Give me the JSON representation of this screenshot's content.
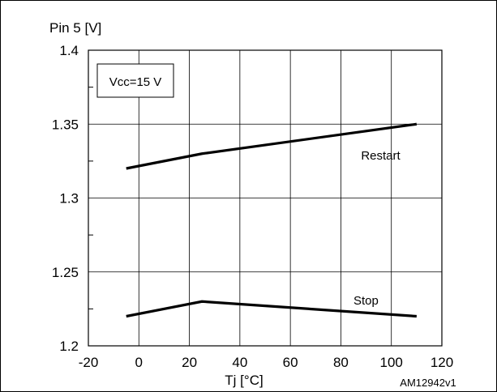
{
  "chart_data": {
    "type": "line",
    "title": "",
    "ylabel": "Pin 5 [V]",
    "xlabel": "Tj [°C]",
    "xlim": [
      -20,
      120
    ],
    "ylim": [
      1.2,
      1.4
    ],
    "x_ticks": [
      -20,
      0,
      20,
      40,
      60,
      80,
      100,
      120
    ],
    "x_tick_labels": [
      "-20",
      "0",
      "20",
      "40",
      "60",
      "80",
      "100",
      "120"
    ],
    "y_ticks": [
      1.2,
      1.25,
      1.3,
      1.35,
      1.4
    ],
    "y_tick_labels": [
      "1.2",
      "1.25",
      "1.3",
      "1.35",
      "1.4"
    ],
    "grid": true,
    "series": [
      {
        "name": "Restart",
        "x": [
          -5,
          25,
          110
        ],
        "y": [
          1.32,
          1.33,
          1.35
        ]
      },
      {
        "name": "Stop",
        "x": [
          -5,
          25,
          110
        ],
        "y": [
          1.22,
          1.23,
          1.22
        ]
      }
    ],
    "annotations": {
      "condition": "Vcc=15 V",
      "code": "AM12942v1"
    },
    "colors": {
      "line": "#000000",
      "grid": "#000000",
      "background": "#ffffff"
    }
  }
}
